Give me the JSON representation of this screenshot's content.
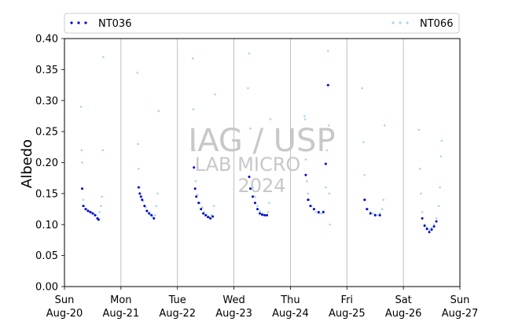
{
  "chart_data": {
    "type": "scatter",
    "title": "",
    "xlabel": "",
    "ylabel": "Albedo",
    "ylim": [
      0,
      0.4
    ],
    "xlim": [
      "2023-08-20",
      "2023-08-27"
    ],
    "grid": "vertical at day boundaries",
    "legend_placement": "top, above plot",
    "yticks": [
      0.0,
      0.05,
      0.1,
      0.15,
      0.2,
      0.25,
      0.3,
      0.35,
      0.4
    ],
    "ytick_labels": [
      "0.00",
      "0.05",
      "0.10",
      "0.15",
      "0.20",
      "0.25",
      "0.30",
      "0.35",
      "0.40"
    ],
    "xtick_labels": [
      {
        "day": "Sun",
        "date": "Aug-20"
      },
      {
        "day": "Mon",
        "date": "Aug-21"
      },
      {
        "day": "Tue",
        "date": "Aug-22"
      },
      {
        "day": "Wed",
        "date": "Aug-23"
      },
      {
        "day": "Thu",
        "date": "Aug-24"
      },
      {
        "day": "Fri",
        "date": "Aug-25"
      },
      {
        "day": "Sat",
        "date": "Aug-26"
      },
      {
        "day": "Sun",
        "date": "Aug-27"
      }
    ],
    "series": [
      {
        "name": "NT036",
        "color": "#0000cc",
        "points": [
          [
            "2023-08-20 07:30",
            0.158
          ],
          [
            "2023-08-20 08:00",
            0.13
          ],
          [
            "2023-08-20 09:00",
            0.125
          ],
          [
            "2023-08-20 10:00",
            0.122
          ],
          [
            "2023-08-20 11:00",
            0.12
          ],
          [
            "2023-08-20 12:00",
            0.118
          ],
          [
            "2023-08-20 13:00",
            0.115
          ],
          [
            "2023-08-20 14:00",
            0.11
          ],
          [
            "2023-08-20 14:30",
            0.108
          ],
          [
            "2023-08-21 07:30",
            0.16
          ],
          [
            "2023-08-21 08:00",
            0.15
          ],
          [
            "2023-08-21 08:30",
            0.145
          ],
          [
            "2023-08-21 09:00",
            0.14
          ],
          [
            "2023-08-21 10:00",
            0.13
          ],
          [
            "2023-08-21 11:00",
            0.122
          ],
          [
            "2023-08-21 12:00",
            0.118
          ],
          [
            "2023-08-21 13:00",
            0.115
          ],
          [
            "2023-08-21 14:00",
            0.11
          ],
          [
            "2023-08-22 07:00",
            0.192
          ],
          [
            "2023-08-22 07:30",
            0.158
          ],
          [
            "2023-08-22 08:00",
            0.145
          ],
          [
            "2023-08-22 09:00",
            0.135
          ],
          [
            "2023-08-22 10:00",
            0.125
          ],
          [
            "2023-08-22 11:00",
            0.118
          ],
          [
            "2023-08-22 12:00",
            0.115
          ],
          [
            "2023-08-22 13:00",
            0.112
          ],
          [
            "2023-08-22 14:00",
            0.11
          ],
          [
            "2023-08-22 15:00",
            0.113
          ],
          [
            "2023-08-23 06:30",
            0.177
          ],
          [
            "2023-08-23 07:00",
            0.158
          ],
          [
            "2023-08-23 08:00",
            0.145
          ],
          [
            "2023-08-23 09:00",
            0.135
          ],
          [
            "2023-08-23 10:00",
            0.125
          ],
          [
            "2023-08-23 11:00",
            0.118
          ],
          [
            "2023-08-23 12:00",
            0.116
          ],
          [
            "2023-08-23 13:00",
            0.115
          ],
          [
            "2023-08-23 14:00",
            0.115
          ],
          [
            "2023-08-24 06:30",
            0.18
          ],
          [
            "2023-08-24 07:30",
            0.14
          ],
          [
            "2023-08-24 08:30",
            0.13
          ],
          [
            "2023-08-24 10:00",
            0.125
          ],
          [
            "2023-08-24 12:00",
            0.12
          ],
          [
            "2023-08-24 14:00",
            0.12
          ],
          [
            "2023-08-24 15:00",
            0.198
          ],
          [
            "2023-08-24 16:00",
            0.325
          ],
          [
            "2023-08-25 07:30",
            0.14
          ],
          [
            "2023-08-25 08:30",
            0.125
          ],
          [
            "2023-08-25 10:00",
            0.118
          ],
          [
            "2023-08-25 12:00",
            0.115
          ],
          [
            "2023-08-25 14:00",
            0.115
          ],
          [
            "2023-08-26 08:00",
            0.11
          ],
          [
            "2023-08-26 09:00",
            0.098
          ],
          [
            "2023-08-26 10:00",
            0.093
          ],
          [
            "2023-08-26 11:00",
            0.088
          ],
          [
            "2023-08-26 12:00",
            0.092
          ],
          [
            "2023-08-26 13:00",
            0.097
          ],
          [
            "2023-08-26 14:00",
            0.105
          ]
        ]
      },
      {
        "name": "NT066",
        "color": "#aad4e8",
        "points": [
          [
            "2023-08-20 07:00",
            0.29
          ],
          [
            "2023-08-20 07:15",
            0.22
          ],
          [
            "2023-08-20 07:30",
            0.2
          ],
          [
            "2023-08-20 08:00",
            0.14
          ],
          [
            "2023-08-20 08:30",
            0.13
          ],
          [
            "2023-08-20 09:30",
            0.125
          ],
          [
            "2023-08-20 10:30",
            0.122
          ],
          [
            "2023-08-20 11:30",
            0.12
          ],
          [
            "2023-08-20 12:30",
            0.118
          ],
          [
            "2023-08-20 13:30",
            0.115
          ],
          [
            "2023-08-20 15:00",
            0.12
          ],
          [
            "2023-08-20 15:30",
            0.13
          ],
          [
            "2023-08-20 16:00",
            0.145
          ],
          [
            "2023-08-20 16:15",
            0.22
          ],
          [
            "2023-08-20 16:30",
            0.37
          ],
          [
            "2023-08-21 07:00",
            0.345
          ],
          [
            "2023-08-21 07:15",
            0.23
          ],
          [
            "2023-08-21 07:30",
            0.19
          ],
          [
            "2023-08-21 08:00",
            0.16
          ],
          [
            "2023-08-21 09:30",
            0.138
          ],
          [
            "2023-08-21 10:30",
            0.128
          ],
          [
            "2023-08-21 11:30",
            0.12
          ],
          [
            "2023-08-21 12:30",
            0.115
          ],
          [
            "2023-08-21 13:30",
            0.112
          ],
          [
            "2023-08-21 14:30",
            0.115
          ],
          [
            "2023-08-21 15:00",
            0.13
          ],
          [
            "2023-08-21 15:30",
            0.15
          ],
          [
            "2023-08-21 16:00",
            0.283
          ],
          [
            "2023-08-22 06:30",
            0.368
          ],
          [
            "2023-08-22 06:45",
            0.286
          ],
          [
            "2023-08-22 07:15",
            0.22
          ],
          [
            "2023-08-22 07:45",
            0.17
          ],
          [
            "2023-08-22 08:30",
            0.148
          ],
          [
            "2023-08-22 09:30",
            0.135
          ],
          [
            "2023-08-22 10:30",
            0.128
          ],
          [
            "2023-08-22 11:30",
            0.12
          ],
          [
            "2023-08-22 12:30",
            0.115
          ],
          [
            "2023-08-22 13:30",
            0.113
          ],
          [
            "2023-08-22 14:30",
            0.115
          ],
          [
            "2023-08-22 15:30",
            0.13
          ],
          [
            "2023-08-22 16:00",
            0.31
          ],
          [
            "2023-08-23 06:00",
            0.32
          ],
          [
            "2023-08-23 06:30",
            0.376
          ],
          [
            "2023-08-23 07:00",
            0.255
          ],
          [
            "2023-08-23 07:30",
            0.2
          ],
          [
            "2023-08-23 08:00",
            0.16
          ],
          [
            "2023-08-23 09:00",
            0.145
          ],
          [
            "2023-08-23 10:00",
            0.13
          ],
          [
            "2023-08-23 11:00",
            0.122
          ],
          [
            "2023-08-23 12:00",
            0.118
          ],
          [
            "2023-08-23 13:00",
            0.115
          ],
          [
            "2023-08-23 14:30",
            0.12
          ],
          [
            "2023-08-23 15:00",
            0.135
          ],
          [
            "2023-08-23 15:30",
            0.27
          ],
          [
            "2023-08-24 06:00",
            0.275
          ],
          [
            "2023-08-24 06:15",
            0.27
          ],
          [
            "2023-08-24 06:30",
            0.205
          ],
          [
            "2023-08-24 07:00",
            0.17
          ],
          [
            "2023-08-24 07:30",
            0.15
          ],
          [
            "2023-08-24 08:00",
            0.14
          ],
          [
            "2023-08-24 09:00",
            0.13
          ],
          [
            "2023-08-24 10:00",
            0.125
          ],
          [
            "2023-08-24 11:00",
            0.12
          ],
          [
            "2023-08-24 12:00",
            0.118
          ],
          [
            "2023-08-24 13:00",
            0.118
          ],
          [
            "2023-08-24 14:00",
            0.122
          ],
          [
            "2023-08-24 15:00",
            0.16
          ],
          [
            "2023-08-24 15:30",
            0.22
          ],
          [
            "2023-08-24 16:00",
            0.38
          ],
          [
            "2023-08-24 16:15",
            0.26
          ],
          [
            "2023-08-24 16:30",
            0.15
          ],
          [
            "2023-08-24 16:45",
            0.1
          ],
          [
            "2023-08-25 06:30",
            0.32
          ],
          [
            "2023-08-25 07:00",
            0.233
          ],
          [
            "2023-08-25 07:30",
            0.18
          ],
          [
            "2023-08-25 08:00",
            0.14
          ],
          [
            "2023-08-25 09:00",
            0.125
          ],
          [
            "2023-08-25 10:00",
            0.12
          ],
          [
            "2023-08-25 11:00",
            0.118
          ],
          [
            "2023-08-25 12:00",
            0.116
          ],
          [
            "2023-08-25 13:00",
            0.115
          ],
          [
            "2023-08-25 14:00",
            0.118
          ],
          [
            "2023-08-25 15:00",
            0.125
          ],
          [
            "2023-08-25 15:30",
            0.14
          ],
          [
            "2023-08-25 16:00",
            0.26
          ],
          [
            "2023-08-26 06:30",
            0.253
          ],
          [
            "2023-08-26 07:00",
            0.19
          ],
          [
            "2023-08-26 07:30",
            0.15
          ],
          [
            "2023-08-26 08:00",
            0.12
          ],
          [
            "2023-08-26 09:00",
            0.1
          ],
          [
            "2023-08-26 10:00",
            0.095
          ],
          [
            "2023-08-26 11:00",
            0.092
          ],
          [
            "2023-08-26 12:00",
            0.095
          ],
          [
            "2023-08-26 13:00",
            0.1
          ],
          [
            "2023-08-26 14:00",
            0.11
          ],
          [
            "2023-08-26 15:00",
            0.13
          ],
          [
            "2023-08-26 15:30",
            0.16
          ],
          [
            "2023-08-26 16:00",
            0.21
          ],
          [
            "2023-08-26 16:15",
            0.235
          ]
        ]
      }
    ],
    "watermark": [
      "IAG / USP",
      "LAB MICRO",
      "2024"
    ]
  }
}
